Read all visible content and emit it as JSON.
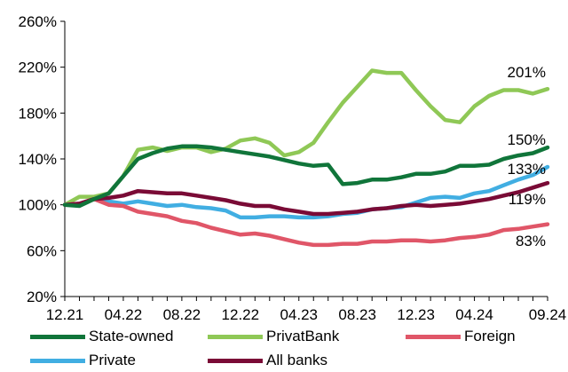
{
  "chart_data": {
    "type": "line",
    "title": "",
    "xlabel": "",
    "ylabel": "",
    "ylim": [
      20,
      260
    ],
    "y_ticks": [
      "20%",
      "60%",
      "100%",
      "140%",
      "180%",
      "220%",
      "260%"
    ],
    "x_tick_labels": [
      "12.21",
      "04.22",
      "08.22",
      "12.22",
      "04.23",
      "08.23",
      "12.23",
      "04.24",
      "09.24"
    ],
    "x": [
      "12.21",
      "01.22",
      "02.22",
      "03.22",
      "04.22",
      "05.22",
      "06.22",
      "07.22",
      "08.22",
      "09.22",
      "10.22",
      "11.22",
      "12.22",
      "01.23",
      "02.23",
      "03.23",
      "04.23",
      "05.23",
      "06.23",
      "07.23",
      "08.23",
      "09.23",
      "10.23",
      "11.23",
      "12.23",
      "01.24",
      "02.24",
      "03.24",
      "04.24",
      "05.24",
      "06.24",
      "07.24",
      "08.24",
      "09.24"
    ],
    "grid": false,
    "legend_position": "bottom",
    "series": [
      {
        "name": "State-owned",
        "color": "#10753a",
        "end_label": "150%",
        "values": [
          100,
          99,
          105,
          110,
          125,
          140,
          145,
          149,
          151,
          151,
          150,
          148,
          146,
          144,
          142,
          139,
          136,
          134,
          135,
          118,
          119,
          122,
          122,
          124,
          127,
          127,
          129,
          134,
          134,
          135,
          140,
          143,
          145,
          150
        ]
      },
      {
        "name": "PrivatBank",
        "color": "#8fc856",
        "end_label": "201%",
        "values": [
          100,
          107,
          107,
          110,
          125,
          148,
          150,
          147,
          150,
          150,
          146,
          149,
          156,
          158,
          154,
          143,
          146,
          154,
          172,
          189,
          203,
          217,
          215,
          215,
          200,
          186,
          174,
          172,
          186,
          195,
          200,
          200,
          197,
          201
        ]
      },
      {
        "name": "Foreign",
        "color": "#e05668",
        "end_label": "83%",
        "values": [
          100,
          101,
          105,
          100,
          99,
          94,
          92,
          90,
          86,
          84,
          80,
          77,
          74,
          75,
          73,
          70,
          67,
          65,
          65,
          66,
          66,
          68,
          68,
          69,
          69,
          68,
          69,
          71,
          72,
          74,
          78,
          79,
          81,
          83
        ]
      },
      {
        "name": "Private",
        "color": "#41aee2",
        "end_label": "133%",
        "values": [
          100,
          100,
          105,
          103,
          101,
          103,
          101,
          99,
          100,
          98,
          97,
          95,
          89,
          89,
          90,
          90,
          89,
          89,
          90,
          92,
          93,
          96,
          97,
          98,
          102,
          106,
          107,
          106,
          110,
          112,
          117,
          122,
          126,
          133
        ]
      },
      {
        "name": "All banks",
        "color": "#7a0b36",
        "end_label": "119%",
        "values": [
          100,
          101,
          105,
          106,
          108,
          112,
          111,
          110,
          110,
          108,
          106,
          104,
          101,
          99,
          99,
          96,
          94,
          92,
          92,
          93,
          94,
          96,
          97,
          99,
          100,
          99,
          100,
          101,
          103,
          105,
          108,
          111,
          115,
          119
        ]
      }
    ]
  }
}
